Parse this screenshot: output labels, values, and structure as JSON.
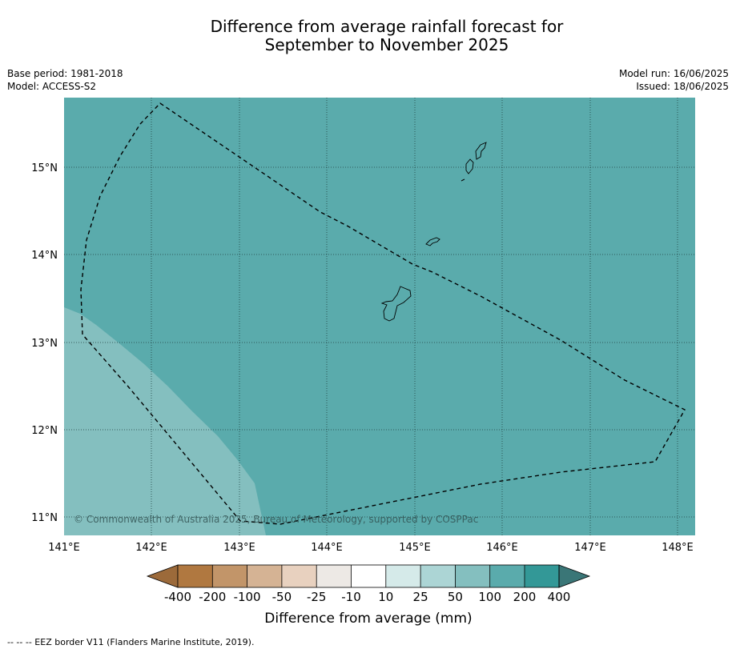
{
  "title": {
    "line1": "Difference from average rainfall forecast for",
    "line2": "September to November 2025"
  },
  "meta": {
    "base_period": "Base period: 1981-2018",
    "model": "Model: ACCESS-S2",
    "model_run": "Model run: 16/06/2025",
    "issued": "Issued: 18/06/2025"
  },
  "map": {
    "copyright": "© Commonwealth of Australia 2025, Bureau of Meteorology, supported by COSPPac",
    "lon_labels": [
      "141°E",
      "142°E",
      "143°E",
      "144°E",
      "145°E",
      "146°E",
      "147°E",
      "148°E"
    ],
    "lat_labels": [
      "15°N",
      "14°N",
      "13°N",
      "12°N",
      "11°N"
    ],
    "colors": {
      "above_100_200": "#5aabac",
      "between_50_100": "#84bfbf"
    }
  },
  "colorbar": {
    "label": "Difference from average (mm)",
    "ticks": [
      "-400",
      "-200",
      "-100",
      "-50",
      "-25",
      "-10",
      "10",
      "25",
      "50",
      "100",
      "200",
      "400"
    ],
    "colors": [
      "#9c6a3a",
      "#b07840",
      "#c29569",
      "#d5b394",
      "#e8d1bf",
      "#ede9e5",
      "#ffffff",
      "#d5eae9",
      "#acd5d5",
      "#84bfbf",
      "#5aabac",
      "#339897",
      "#3a7677"
    ]
  },
  "footnote": "--  --  -- EEZ border V11 (Flanders Marine Institute, 2019)."
}
